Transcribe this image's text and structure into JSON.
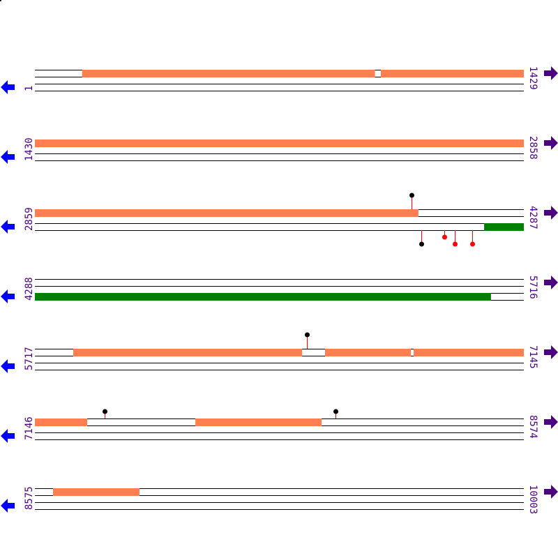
{
  "colors": {
    "orange": "#ff7f50",
    "green": "#008000",
    "line": "#000000",
    "label": "#4b0082",
    "left_arrow": "#0000ff",
    "right_arrow": "#4b0082",
    "marker_black": "#000000",
    "marker_red": "#ff0000",
    "stem": "#ff0000"
  },
  "icons": {
    "left": "arrow-left-icon",
    "right": "arrow-right-icon"
  },
  "rows": [
    {
      "start": "1",
      "end": "1429",
      "s": 1,
      "e": 1429,
      "features": [
        {
          "from": 139,
          "to": 995,
          "lane": 0,
          "color": "orange"
        },
        {
          "from": 1012,
          "to": 1429,
          "lane": 0,
          "color": "orange"
        }
      ],
      "markers": []
    },
    {
      "start": "1430",
      "end": "2858",
      "s": 1430,
      "e": 2858,
      "features": [
        {
          "from": 1430,
          "to": 2858,
          "lane": 0,
          "color": "orange"
        }
      ],
      "markers": []
    },
    {
      "start": "2859",
      "end": "4287",
      "s": 2859,
      "e": 4287,
      "features": [
        {
          "from": 2859,
          "to": 3980,
          "lane": 0,
          "color": "orange"
        },
        {
          "from": 4172,
          "to": 4287,
          "lane": 2,
          "color": "green"
        }
      ],
      "markers": [
        {
          "pos": 3960,
          "side": "top",
          "level": 2,
          "color": "marker_black"
        },
        {
          "pos": 3988,
          "side": "bottom",
          "level": 2,
          "color": "marker_black"
        },
        {
          "pos": 4056,
          "side": "bottom",
          "level": 1,
          "color": "marker_red"
        },
        {
          "pos": 4086,
          "side": "bottom",
          "level": 2,
          "color": "marker_red"
        },
        {
          "pos": 4137,
          "side": "bottom",
          "level": 2,
          "color": "marker_red"
        }
      ]
    },
    {
      "start": "4288",
      "end": "5716",
      "s": 4288,
      "e": 5716,
      "features": [
        {
          "from": 4288,
          "to": 5621,
          "lane": 2,
          "color": "green"
        }
      ],
      "markers": []
    },
    {
      "start": "5717",
      "end": "7145",
      "s": 5717,
      "e": 7145,
      "features": [
        {
          "from": 5829,
          "to": 6498,
          "lane": 0,
          "color": "orange"
        },
        {
          "from": 6565,
          "to": 6816,
          "lane": 0,
          "color": "orange"
        },
        {
          "from": 6824,
          "to": 7145,
          "lane": 0,
          "color": "orange"
        }
      ],
      "markers": [
        {
          "pos": 6512,
          "side": "top",
          "level": 2,
          "color": "marker_black"
        }
      ]
    },
    {
      "start": "7146",
      "end": "8574",
      "s": 7146,
      "e": 8574,
      "features": [
        {
          "from": 7146,
          "to": 7299,
          "lane": 0,
          "color": "orange"
        },
        {
          "from": 7615,
          "to": 7984,
          "lane": 0,
          "color": "orange"
        }
      ],
      "markers": [
        {
          "pos": 7350,
          "side": "top",
          "level": 1,
          "color": "marker_black"
        },
        {
          "pos": 8025,
          "side": "top",
          "level": 1,
          "color": "marker_black"
        }
      ]
    },
    {
      "start": "8575",
      "end": "10003",
      "s": 8575,
      "e": 10003,
      "features": [
        {
          "from": 8628,
          "to": 8881,
          "lane": 0,
          "color": "orange"
        }
      ],
      "markers": []
    }
  ]
}
